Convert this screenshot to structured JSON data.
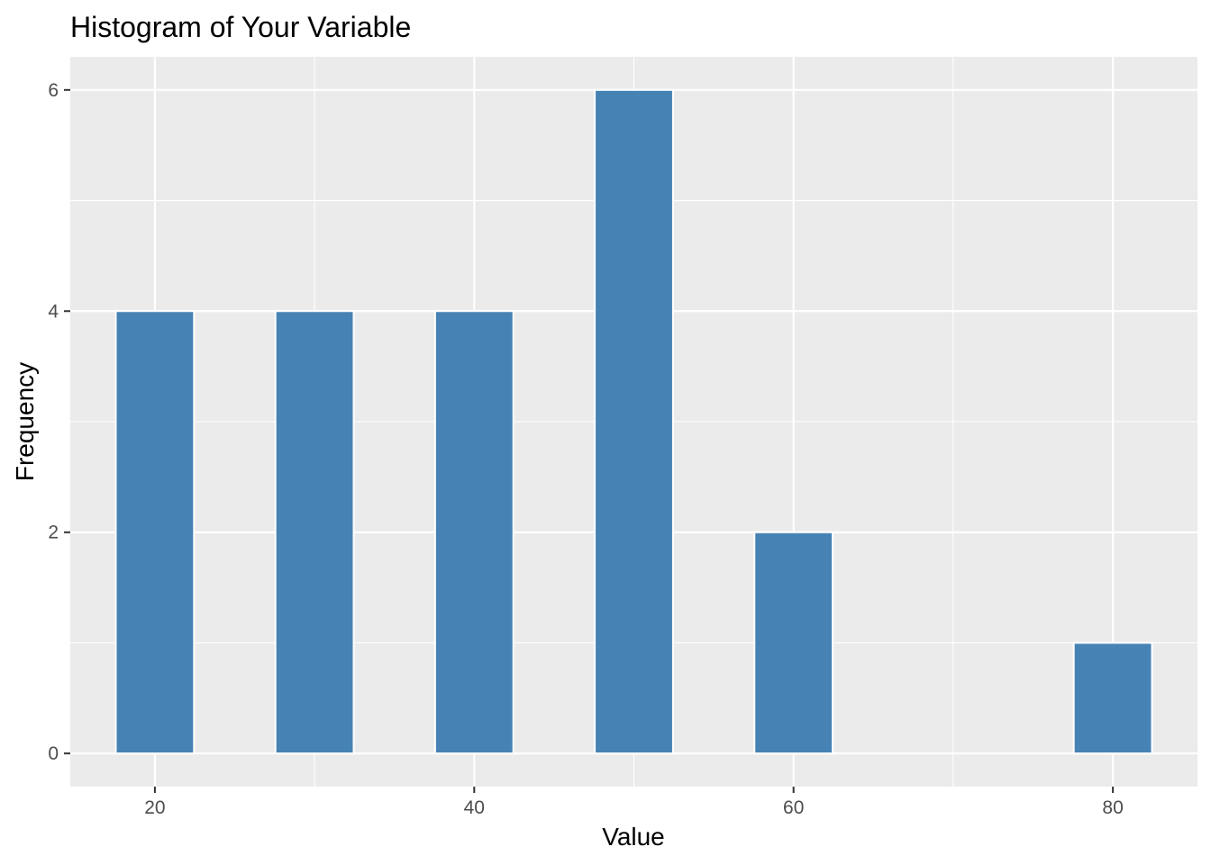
{
  "chart_data": {
    "type": "bar",
    "title": "Histogram of Your Variable",
    "xlabel": "Value",
    "ylabel": "Frequency",
    "bin_width": 5,
    "bins": [
      {
        "center": 20,
        "count": 4
      },
      {
        "center": 30,
        "count": 4
      },
      {
        "center": 40,
        "count": 4
      },
      {
        "center": 50,
        "count": 6
      },
      {
        "center": 60,
        "count": 2
      },
      {
        "center": 80,
        "count": 1
      }
    ],
    "xlim": [
      14.7,
      85.3
    ],
    "ylim": [
      -0.3,
      6.3
    ],
    "x_ticks": [
      20,
      40,
      60,
      80
    ],
    "y_ticks": [
      0,
      2,
      4,
      6
    ],
    "x_minor": [
      30,
      50,
      70
    ],
    "y_minor": [
      1,
      3,
      5
    ],
    "grid": true,
    "legend": "none",
    "colors": {
      "bar_fill": "#4682b4",
      "bar_outline": "#ffffff",
      "panel": "#ebebeb",
      "grid": "#ffffff"
    }
  }
}
